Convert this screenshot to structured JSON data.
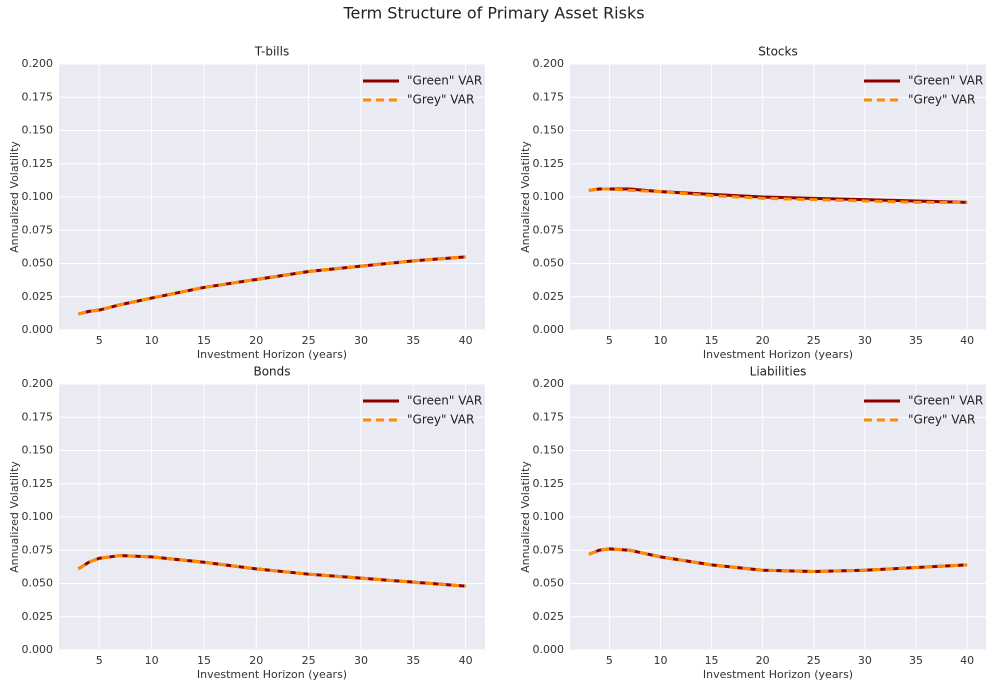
{
  "title": "Term Structure of Primary Asset Risks",
  "chart_data": [
    {
      "type": "line",
      "title": "T-bills",
      "x_label": "Investment Horizon (years)",
      "y_label": "Annualized Volatility",
      "x": [
        3,
        4,
        5,
        7,
        10,
        15,
        20,
        25,
        30,
        35,
        40
      ],
      "series": [
        {
          "name": "\"Green\" VAR",
          "color": "#8b0000",
          "linestyle": "solid",
          "values": [
            0.012,
            0.014,
            0.015,
            0.019,
            0.024,
            0.032,
            0.038,
            0.044,
            0.048,
            0.052,
            0.055
          ]
        },
        {
          "name": "\"Grey\" VAR",
          "color": "#ff8c00",
          "linestyle": "dashed",
          "values": [
            0.012,
            0.014,
            0.015,
            0.019,
            0.024,
            0.032,
            0.038,
            0.044,
            0.048,
            0.052,
            0.055
          ]
        }
      ],
      "xlim": [
        1.15,
        41.85
      ],
      "ylim": [
        0,
        0.2
      ],
      "xticks": [
        5,
        10,
        15,
        20,
        25,
        30,
        35,
        40
      ],
      "yticks": [
        {
          "value": 0,
          "label": "0.000"
        },
        {
          "value": 0.025,
          "label": "0.025"
        },
        {
          "value": 0.05,
          "label": "0.050"
        },
        {
          "value": 0.075,
          "label": "0.075"
        },
        {
          "value": 0.1,
          "label": "0.100"
        },
        {
          "value": 0.125,
          "label": "0.125"
        },
        {
          "value": 0.15,
          "label": "0.150"
        },
        {
          "value": 0.175,
          "label": "0.175"
        },
        {
          "value": 0.2,
          "label": "0.200"
        }
      ],
      "grid": true,
      "legend": "upper right"
    },
    {
      "type": "line",
      "title": "Stocks",
      "x_label": "Investment Horizon (years)",
      "y_label": "Annualized Volatility",
      "x": [
        3,
        4,
        5,
        7,
        10,
        15,
        20,
        25,
        30,
        35,
        40
      ],
      "series": [
        {
          "name": "\"Green\" VAR",
          "color": "#8b0000",
          "linestyle": "solid",
          "values": [
            0.105,
            0.106,
            0.106,
            0.106,
            0.104,
            0.102,
            0.1,
            0.099,
            0.098,
            0.097,
            0.096
          ]
        },
        {
          "name": "\"Grey\" VAR",
          "color": "#ff8c00",
          "linestyle": "dashed",
          "values": [
            0.105,
            0.106,
            0.106,
            0.105,
            0.104,
            0.101,
            0.099,
            0.098,
            0.097,
            0.096,
            0.096
          ]
        }
      ],
      "xlim": [
        1.15,
        41.85
      ],
      "ylim": [
        0,
        0.2
      ],
      "xticks": [
        5,
        10,
        15,
        20,
        25,
        30,
        35,
        40
      ],
      "yticks": [
        {
          "value": 0,
          "label": "0.000"
        },
        {
          "value": 0.025,
          "label": "0.025"
        },
        {
          "value": 0.05,
          "label": "0.050"
        },
        {
          "value": 0.075,
          "label": "0.075"
        },
        {
          "value": 0.1,
          "label": "0.100"
        },
        {
          "value": 0.125,
          "label": "0.125"
        },
        {
          "value": 0.15,
          "label": "0.150"
        },
        {
          "value": 0.175,
          "label": "0.175"
        },
        {
          "value": 0.2,
          "label": "0.200"
        }
      ],
      "grid": true,
      "legend": "upper right"
    },
    {
      "type": "line",
      "title": "Bonds",
      "x_label": "Investment Horizon (years)",
      "y_label": "Annualized Volatility",
      "x": [
        3,
        4,
        5,
        7,
        10,
        15,
        20,
        25,
        30,
        35,
        40
      ],
      "series": [
        {
          "name": "\"Green\" VAR",
          "color": "#8b0000",
          "linestyle": "solid",
          "values": [
            0.061,
            0.066,
            0.069,
            0.071,
            0.07,
            0.066,
            0.061,
            0.057,
            0.054,
            0.051,
            0.048
          ]
        },
        {
          "name": "\"Grey\" VAR",
          "color": "#ff8c00",
          "linestyle": "dashed",
          "values": [
            0.061,
            0.066,
            0.069,
            0.071,
            0.07,
            0.066,
            0.061,
            0.057,
            0.054,
            0.051,
            0.048
          ]
        }
      ],
      "xlim": [
        1.15,
        41.85
      ],
      "ylim": [
        0,
        0.2
      ],
      "xticks": [
        5,
        10,
        15,
        20,
        25,
        30,
        35,
        40
      ],
      "yticks": [
        {
          "value": 0,
          "label": "0.000"
        },
        {
          "value": 0.025,
          "label": "0.025"
        },
        {
          "value": 0.05,
          "label": "0.050"
        },
        {
          "value": 0.075,
          "label": "0.075"
        },
        {
          "value": 0.1,
          "label": "0.100"
        },
        {
          "value": 0.125,
          "label": "0.125"
        },
        {
          "value": 0.15,
          "label": "0.150"
        },
        {
          "value": 0.175,
          "label": "0.175"
        },
        {
          "value": 0.2,
          "label": "0.200"
        }
      ],
      "grid": true,
      "legend": "upper right"
    },
    {
      "type": "line",
      "title": "Liabilities",
      "x_label": "Investment Horizon (years)",
      "y_label": "Annualized Volatility",
      "x": [
        3,
        4,
        5,
        7,
        10,
        15,
        20,
        25,
        30,
        35,
        40
      ],
      "series": [
        {
          "name": "\"Green\" VAR",
          "color": "#8b0000",
          "linestyle": "solid",
          "values": [
            0.072,
            0.075,
            0.076,
            0.075,
            0.07,
            0.064,
            0.06,
            0.059,
            0.06,
            0.062,
            0.064
          ]
        },
        {
          "name": "\"Grey\" VAR",
          "color": "#ff8c00",
          "linestyle": "dashed",
          "values": [
            0.072,
            0.075,
            0.076,
            0.075,
            0.07,
            0.064,
            0.06,
            0.059,
            0.06,
            0.062,
            0.064
          ]
        }
      ],
      "xlim": [
        1.15,
        41.85
      ],
      "ylim": [
        0,
        0.2
      ],
      "xticks": [
        5,
        10,
        15,
        20,
        25,
        30,
        35,
        40
      ],
      "yticks": [
        {
          "value": 0,
          "label": "0.000"
        },
        {
          "value": 0.025,
          "label": "0.025"
        },
        {
          "value": 0.05,
          "label": "0.050"
        },
        {
          "value": 0.075,
          "label": "0.075"
        },
        {
          "value": 0.1,
          "label": "0.100"
        },
        {
          "value": 0.125,
          "label": "0.125"
        },
        {
          "value": 0.15,
          "label": "0.150"
        },
        {
          "value": 0.175,
          "label": "0.175"
        },
        {
          "value": 0.2,
          "label": "0.200"
        }
      ],
      "grid": true,
      "legend": "upper right"
    }
  ]
}
